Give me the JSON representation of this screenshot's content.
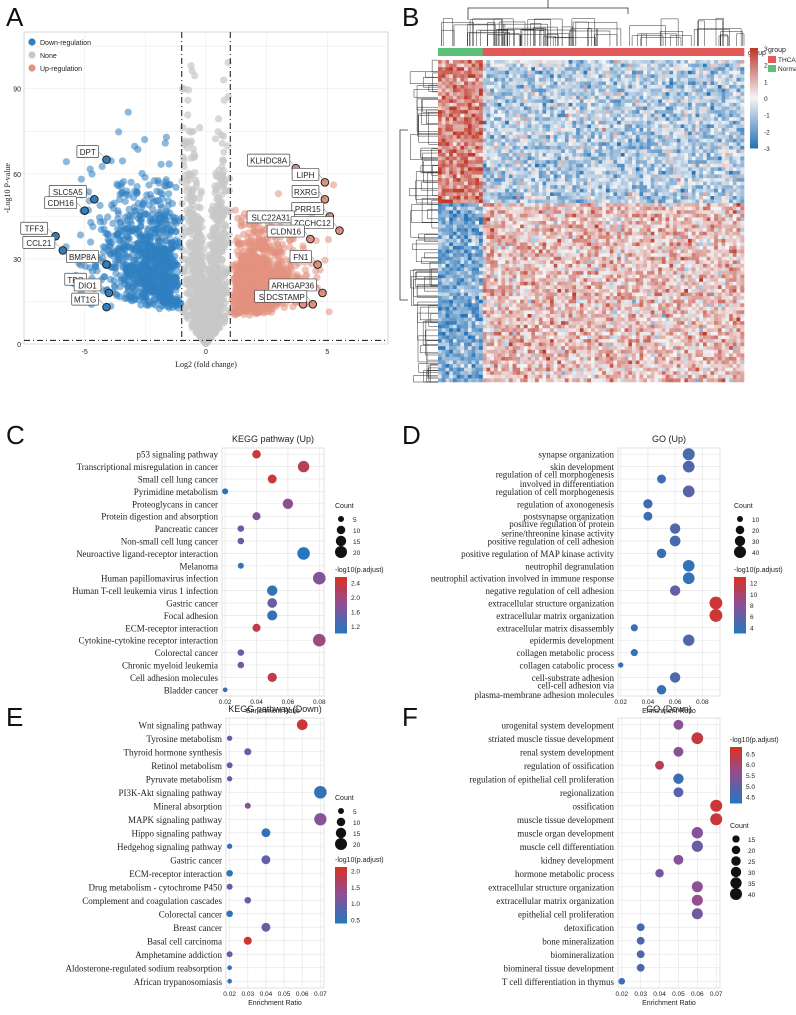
{
  "chart_data": [
    {
      "panel": "A",
      "type": "scatter",
      "title": "",
      "xlabel": "Log2 (fold change)",
      "ylabel": "-Log10 P-value",
      "xlim": [
        -7.5,
        7.5
      ],
      "ylim": [
        0,
        110
      ],
      "xticks": [
        -5,
        0,
        5
      ],
      "yticks": [
        0,
        30,
        60,
        90
      ],
      "thresholds": {
        "fc": 1,
        "p_line": 1.3
      },
      "legend": [
        {
          "label": "Down-regulation",
          "color": "#2f7fc1"
        },
        {
          "label": "None",
          "color": "#c8c8c8"
        },
        {
          "label": "Up-regulation",
          "color": "#e4917f"
        }
      ],
      "labeled_genes": [
        {
          "label": "TFF3",
          "x": -6.2,
          "y": 38
        },
        {
          "label": "CCL21",
          "x": -5.9,
          "y": 33
        },
        {
          "label": "DPT",
          "x": -4.1,
          "y": 65
        },
        {
          "label": "SLC5A5",
          "x": -4.6,
          "y": 51
        },
        {
          "label": "CDH16",
          "x": -5.0,
          "y": 47
        },
        {
          "label": "BMP8A",
          "x": -4.1,
          "y": 28
        },
        {
          "label": "TPO",
          "x": -4.6,
          "y": 20
        },
        {
          "label": "DIO1",
          "x": -4.0,
          "y": 18
        },
        {
          "label": "MT1G",
          "x": -4.1,
          "y": 13
        },
        {
          "label": "KLHDC8A",
          "x": 3.7,
          "y": 62
        },
        {
          "label": "LIPH",
          "x": 4.9,
          "y": 57
        },
        {
          "label": "RXRG",
          "x": 4.9,
          "y": 51
        },
        {
          "label": "PRR15",
          "x": 5.1,
          "y": 45
        },
        {
          "label": "SLC22A31",
          "x": 3.9,
          "y": 42
        },
        {
          "label": "ZCCHC12",
          "x": 5.5,
          "y": 40
        },
        {
          "label": "CLDN16",
          "x": 4.3,
          "y": 37
        },
        {
          "label": "FN1",
          "x": 4.6,
          "y": 28
        },
        {
          "label": "ARHGAP36",
          "x": 4.8,
          "y": 18
        },
        {
          "label": "SLC34A2",
          "x": 4.0,
          "y": 14
        },
        {
          "label": "DCSTAMP",
          "x": 4.4,
          "y": 14
        }
      ]
    },
    {
      "panel": "B",
      "type": "heatmap",
      "legend_title": "group",
      "groups": [
        {
          "label": "THCA",
          "color": "#e05a5a"
        },
        {
          "label": "Normal",
          "color": "#5cbf7a"
        }
      ],
      "scale_ticks": [
        3,
        2,
        1,
        0,
        -1,
        -2,
        -3
      ],
      "low_color": "#2874b8",
      "mid_color": "#f4f4f4",
      "high_color": "#c0392b"
    },
    {
      "panel": "C",
      "type": "scatter",
      "title": "KEGG pathway (Up)",
      "xlabel": "Enrichment Ratio",
      "xlim": [
        0.018,
        0.083
      ],
      "xticks": [
        "0.02",
        "0.04",
        "0.06",
        "0.08"
      ],
      "count_legend": {
        "title": "Count",
        "values": [
          5,
          10,
          15,
          20
        ]
      },
      "color_legend": {
        "title": "-log10(p.adjust)",
        "ticks": [
          "2.4",
          "2.0",
          "1.6",
          "1.2"
        ],
        "min": 1.0,
        "max": 2.55
      },
      "terms": [
        {
          "label": "p53 signaling pathway",
          "x": 0.04,
          "count": 10,
          "p": 2.4
        },
        {
          "label": "Transcriptional misregulation in cancer",
          "x": 0.07,
          "count": 18,
          "p": 2.2
        },
        {
          "label": "Small cell lung cancer",
          "x": 0.05,
          "count": 11,
          "p": 2.4
        },
        {
          "label": "Pyrimidine metabolism",
          "x": 0.02,
          "count": 5,
          "p": 1.0
        },
        {
          "label": "Proteoglycans in cancer",
          "x": 0.06,
          "count": 15,
          "p": 1.8
        },
        {
          "label": "Protein digestion and absorption",
          "x": 0.04,
          "count": 9,
          "p": 1.7
        },
        {
          "label": "Pancreatic cancer",
          "x": 0.03,
          "count": 6,
          "p": 1.5
        },
        {
          "label": "Non-small cell lung cancer",
          "x": 0.03,
          "count": 6,
          "p": 1.5
        },
        {
          "label": "Neuroactive ligand-receptor interaction",
          "x": 0.07,
          "count": 22,
          "p": 1.0
        },
        {
          "label": "Melanoma",
          "x": 0.03,
          "count": 5,
          "p": 1.1
        },
        {
          "label": "Human papillomavirus infection",
          "x": 0.08,
          "count": 22,
          "p": 1.7
        },
        {
          "label": "Human T-cell leukemia virus 1 infection",
          "x": 0.05,
          "count": 15,
          "p": 1.1
        },
        {
          "label": "Gastric cancer",
          "x": 0.05,
          "count": 13,
          "p": 1.5
        },
        {
          "label": "Focal adhesion",
          "x": 0.05,
          "count": 14,
          "p": 1.1
        },
        {
          "label": "ECM-receptor interaction",
          "x": 0.04,
          "count": 9,
          "p": 2.3
        },
        {
          "label": "Cytokine-cytokine receptor interaction",
          "x": 0.08,
          "count": 22,
          "p": 1.9
        },
        {
          "label": "Colorectal cancer",
          "x": 0.03,
          "count": 6,
          "p": 1.5
        },
        {
          "label": "Chronic myeloid leukemia",
          "x": 0.03,
          "count": 6,
          "p": 1.6
        },
        {
          "label": "Cell adhesion molecules",
          "x": 0.05,
          "count": 12,
          "p": 2.3
        },
        {
          "label": "Bladder cancer",
          "x": 0.02,
          "count": 3,
          "p": 1.2
        }
      ]
    },
    {
      "panel": "D",
      "type": "scatter",
      "title": "GO (Up)",
      "xlabel": "Enrichment Ratio",
      "xlim": [
        0.018,
        0.093
      ],
      "xticks": [
        "0.02",
        "0.04",
        "0.06",
        "0.08"
      ],
      "count_legend": {
        "title": "Count",
        "values": [
          10,
          20,
          30,
          40
        ]
      },
      "color_legend": {
        "title": "-log10(p.adjust)",
        "ticks": [
          "12",
          "10",
          "8",
          "6",
          "4"
        ],
        "min": 3,
        "max": 13
      },
      "terms": [
        {
          "label": "synapse organization",
          "x": 0.07,
          "count": 40,
          "p": 4.5
        },
        {
          "label": "skin development",
          "x": 0.07,
          "count": 38,
          "p": 5.0
        },
        {
          "label": "regulation of cell morphogenesis\ninvolved in differentiation",
          "x": 0.05,
          "count": 22,
          "p": 4.0
        },
        {
          "label": "regulation of cell morphogenesis",
          "x": 0.07,
          "count": 38,
          "p": 5.5
        },
        {
          "label": "regulation of axonogenesis",
          "x": 0.04,
          "count": 24,
          "p": 4.3
        },
        {
          "label": "postsynapse organization",
          "x": 0.04,
          "count": 22,
          "p": 4.0
        },
        {
          "label": "positive regulation of protein\nserine/threonine kinase activity",
          "x": 0.06,
          "count": 30,
          "p": 5.2
        },
        {
          "label": "positive regulation of cell adhesion",
          "x": 0.06,
          "count": 32,
          "p": 4.5
        },
        {
          "label": "positive regulation of MAP kinase activity",
          "x": 0.05,
          "count": 25,
          "p": 3.8
        },
        {
          "label": "neutrophil degranulation",
          "x": 0.07,
          "count": 38,
          "p": 3.5
        },
        {
          "label": "neutrophil activation involved in immune response",
          "x": 0.07,
          "count": 38,
          "p": 3.5
        },
        {
          "label": "negative regulation of cell adhesion",
          "x": 0.06,
          "count": 30,
          "p": 6.0
        },
        {
          "label": "extracellular structure organization",
          "x": 0.09,
          "count": 46,
          "p": 12.3
        },
        {
          "label": "extracellular matrix organization",
          "x": 0.09,
          "count": 46,
          "p": 12.3
        },
        {
          "label": "extracellular matrix disassembly",
          "x": 0.03,
          "count": 14,
          "p": 4.0
        },
        {
          "label": "epidermis development",
          "x": 0.07,
          "count": 36,
          "p": 5.0
        },
        {
          "label": "collagen metabolic process",
          "x": 0.03,
          "count": 14,
          "p": 4.0
        },
        {
          "label": "collagen catabolic process",
          "x": 0.02,
          "count": 8,
          "p": 3.5
        },
        {
          "label": "cell-substrate adhesion",
          "x": 0.06,
          "count": 30,
          "p": 4.8
        },
        {
          "label": "cell-cell adhesion via\nplasma-membrane adhesion molecules",
          "x": 0.05,
          "count": 25,
          "p": 4.0
        }
      ]
    },
    {
      "panel": "E",
      "type": "scatter",
      "title": "KEGG pathway (Down)",
      "xlabel": "Enrichment Ratio",
      "xlim": [
        0.018,
        0.072
      ],
      "xticks": [
        "0.02",
        "0.03",
        "0.04",
        "0.05",
        "0.06",
        "0.07"
      ],
      "count_legend": {
        "title": "Count",
        "values": [
          5,
          10,
          15,
          20
        ]
      },
      "color_legend": {
        "title": "-log10(p.adjust)",
        "ticks": [
          "2.0",
          "1.5",
          "1.0",
          "0.5"
        ],
        "min": 0.4,
        "max": 2.1
      },
      "terms": [
        {
          "label": "Wnt signaling pathway",
          "x": 0.06,
          "count": 16,
          "p": 2.0
        },
        {
          "label": "Tyrosine metabolism",
          "x": 0.02,
          "count": 4,
          "p": 0.9
        },
        {
          "label": "Thyroid hormone synthesis",
          "x": 0.03,
          "count": 7,
          "p": 0.9
        },
        {
          "label": "Retinol metabolism",
          "x": 0.02,
          "count": 5,
          "p": 0.9
        },
        {
          "label": "Pyruvate metabolism",
          "x": 0.02,
          "count": 4,
          "p": 0.9
        },
        {
          "label": "PI3K-Akt signaling pathway",
          "x": 0.07,
          "count": 22,
          "p": 0.5
        },
        {
          "label": "Mineral absorption",
          "x": 0.03,
          "count": 5,
          "p": 1.2
        },
        {
          "label": "MAPK signaling pathway",
          "x": 0.07,
          "count": 21,
          "p": 1.2
        },
        {
          "label": "Hippo signaling pathway",
          "x": 0.04,
          "count": 11,
          "p": 0.5
        },
        {
          "label": "Hedgehog signaling pathway",
          "x": 0.02,
          "count": 4,
          "p": 0.5
        },
        {
          "label": "Gastric cancer",
          "x": 0.04,
          "count": 11,
          "p": 0.9
        },
        {
          "label": "ECM-receptor interaction",
          "x": 0.02,
          "count": 6,
          "p": 0.5
        },
        {
          "label": "Drug metabolism - cytochrome P450",
          "x": 0.02,
          "count": 5,
          "p": 0.9
        },
        {
          "label": "Complement and coagulation cascades",
          "x": 0.03,
          "count": 6,
          "p": 0.9
        },
        {
          "label": "Colorectal cancer",
          "x": 0.02,
          "count": 6,
          "p": 0.5
        },
        {
          "label": "Breast cancer",
          "x": 0.04,
          "count": 11,
          "p": 0.9
        },
        {
          "label": "Basal cell carcinoma",
          "x": 0.03,
          "count": 9,
          "p": 2.0
        },
        {
          "label": "Amphetamine addiction",
          "x": 0.02,
          "count": 5,
          "p": 0.9
        },
        {
          "label": "Aldosterone-regulated sodium reabsorption",
          "x": 0.02,
          "count": 3,
          "p": 0.5
        },
        {
          "label": "African trypanosomiasis",
          "x": 0.02,
          "count": 3,
          "p": 0.5
        }
      ]
    },
    {
      "panel": "F",
      "type": "scatter",
      "title": "GO (Down)",
      "xlabel": "Enrichment Ratio",
      "xlim": [
        0.018,
        0.072
      ],
      "xticks": [
        "0.02",
        "0.03",
        "0.04",
        "0.05",
        "0.06",
        "0.07"
      ],
      "count_legend": {
        "title": "Count",
        "values": [
          15,
          20,
          25,
          30,
          35,
          40
        ]
      },
      "color_legend": {
        "title": "-log10(p.adjust)",
        "ticks": [
          "6.5",
          "6.0",
          "5.5",
          "5.0",
          "4.5"
        ],
        "min": 4.2,
        "max": 6.8
      },
      "terms": [
        {
          "label": "urogenital system development",
          "x": 0.05,
          "count": 27,
          "p": 5.5
        },
        {
          "label": "striated muscle tissue development",
          "x": 0.06,
          "count": 38,
          "p": 6.5
        },
        {
          "label": "renal system development",
          "x": 0.05,
          "count": 27,
          "p": 5.5
        },
        {
          "label": "regulation of ossification",
          "x": 0.04,
          "count": 22,
          "p": 6.2
        },
        {
          "label": "regulation of epithelial cell proliferation",
          "x": 0.05,
          "count": 30,
          "p": 4.4
        },
        {
          "label": "regionalization",
          "x": 0.05,
          "count": 27,
          "p": 4.8
        },
        {
          "label": "ossification",
          "x": 0.07,
          "count": 40,
          "p": 6.6
        },
        {
          "label": "muscle tissue development",
          "x": 0.07,
          "count": 40,
          "p": 6.6
        },
        {
          "label": "muscle organ development",
          "x": 0.06,
          "count": 36,
          "p": 5.4
        },
        {
          "label": "muscle cell differentiation",
          "x": 0.06,
          "count": 35,
          "p": 5.0
        },
        {
          "label": "kidney development",
          "x": 0.05,
          "count": 27,
          "p": 5.4
        },
        {
          "label": "hormone metabolic process",
          "x": 0.04,
          "count": 20,
          "p": 5.2
        },
        {
          "label": "extracellular structure organization",
          "x": 0.06,
          "count": 34,
          "p": 5.5
        },
        {
          "label": "extracellular matrix organization",
          "x": 0.06,
          "count": 34,
          "p": 5.6
        },
        {
          "label": "epithelial cell proliferation",
          "x": 0.06,
          "count": 34,
          "p": 5.2
        },
        {
          "label": "detoxification",
          "x": 0.03,
          "count": 17,
          "p": 4.6
        },
        {
          "label": "bone mineralization",
          "x": 0.03,
          "count": 17,
          "p": 4.7
        },
        {
          "label": "biomineralization",
          "x": 0.03,
          "count": 17,
          "p": 4.7
        },
        {
          "label": "biomineral tissue development",
          "x": 0.03,
          "count": 17,
          "p": 4.7
        },
        {
          "label": "T cell differentiation in thymus",
          "x": 0.02,
          "count": 12,
          "p": 4.4
        }
      ]
    }
  ],
  "panels": {
    "A": "A",
    "B": "B",
    "C": "C",
    "D": "D",
    "E": "E",
    "F": "F"
  }
}
